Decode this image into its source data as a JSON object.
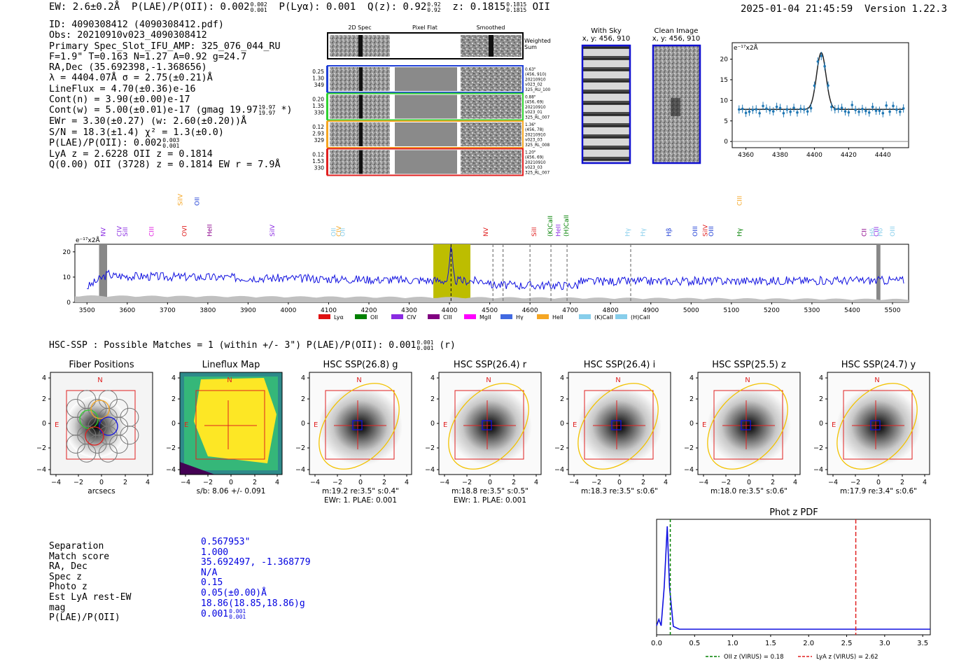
{
  "header": {
    "ew": "EW: 2.6±0.2Å",
    "plae_label": "P(LAE)/P(OII): 0.002",
    "plae_hi": "0.002",
    "plae_lo": "0.001",
    "plya": "P(Lyα): 0.001",
    "q_label": "Q(z): 0.92",
    "q_hi": "0.92",
    "q_lo": "0.92",
    "z_label": "z: 0.1815",
    "z_hi": "0.1815",
    "z_lo": "0.1815",
    "z_line": "OII",
    "timestamp": "2025-01-04 21:45:59",
    "version": "Version 1.22.3"
  },
  "info": {
    "id": "ID: 4090308412 (4090308412.pdf)",
    "obs": "Obs: 20210910v023_4090308412",
    "primary": "Primary Spec_Slot_IFU_AMP: 325_076_044_RU",
    "fiber": "F=1.9\"  T=0.163  N=1.27  A=0.92  g=24.7",
    "radec": "RA,Dec (35.692398,-1.368656)",
    "lambda": "λ = 4404.07Å  σ = 2.75(±0.21)Å",
    "lineflux": "LineFlux = 4.70(±0.36)e-16",
    "contn": "Cont(n) = 3.90(±0.00)e-17",
    "contw": "Cont(w) = 5.00(±0.01)e-17 (gmag 19.97",
    "contw_hi": "19.97",
    "contw_lo": "19.97",
    "contw_end": "*)",
    "ewr": "EWr = 3.30(±0.27) (w: 2.60(±0.20))Å",
    "sn": "S/N = 18.3(±1.4)  χ² = 1.3(±0.0)",
    "plae": "P(LAE)/P(OII): 0.002",
    "plae_hi": "0.003",
    "plae_lo": "0.001",
    "lya": "LyA z = 2.6228  OII z = 0.1814",
    "q": "Q(0.00) OII (3728) z = 0.1814  EW r = 7.9Å"
  },
  "cutouts": {
    "col_titles": [
      "2D Spec",
      "Pixel Flat",
      "Smoothed"
    ],
    "weighted_sum": [
      "Weighted",
      "Sum"
    ],
    "rows": [
      {
        "left": [
          "0.25",
          "1.30",
          "349"
        ],
        "right": [
          "0.63\"",
          "(456, 910)",
          "20210910",
          "v023_02",
          "325_RU_100"
        ],
        "color": "#1f3fd6"
      },
      {
        "left": [
          "0.20",
          "1.35",
          "330"
        ],
        "right": [
          "0.88\"",
          "(456, 69)",
          "20210910",
          "v023_01",
          "325_RL_007"
        ],
        "color": "#2fd12f"
      },
      {
        "left": [
          "0.12",
          "2.93",
          "329"
        ],
        "right": [
          "1.36\"",
          "(456, 78)",
          "20210910",
          "v023_03",
          "325_RL_008"
        ],
        "color": "#f5a623"
      },
      {
        "left": [
          "0.12",
          "1.53",
          "330"
        ],
        "right": [
          "1.20\"",
          "(456, 69)",
          "20210910",
          "v023_03",
          "325_RL_007"
        ],
        "color": "#e02020"
      }
    ]
  },
  "with_sky": {
    "title": "With Sky",
    "coords": "x, y: 456, 910"
  },
  "clean_image": {
    "title": "Clean Image",
    "coords": "x, y: 456, 910"
  },
  "zoom_chart": {
    "ylabel": "e⁻¹⁷x2Å",
    "yticks": [
      "0",
      "5",
      "10",
      "15",
      "20"
    ],
    "xticks": [
      "4360",
      "4380",
      "4400",
      "4420",
      "4440"
    ]
  },
  "full_spectrum": {
    "ylabel": "e⁻¹⁷x2Å",
    "yticks": [
      "0",
      "10",
      "20"
    ],
    "xticks": [
      "3500",
      "3600",
      "3700",
      "3800",
      "3900",
      "4000",
      "4100",
      "4200",
      "4300",
      "4400",
      "4500",
      "4600",
      "4700",
      "4800",
      "4900",
      "5000",
      "5100",
      "5200",
      "5300",
      "5400",
      "5500"
    ],
    "lines": [
      {
        "label": "NV",
        "color": "#8a2be2"
      },
      {
        "label": "CIV",
        "color": "#8a2be2"
      },
      {
        "label": "SiII",
        "color": "#8a2be2"
      },
      {
        "label": "CIII",
        "color": "#e020e0"
      },
      {
        "label": "SiIV",
        "color": "#f5a623"
      },
      {
        "label": "OVI",
        "color": "#e02020"
      },
      {
        "label": "OII",
        "color": "#1f3fd6"
      },
      {
        "label": "HeII",
        "color": "#8b008b"
      },
      {
        "label": "SiIV",
        "color": "#8a2be2"
      },
      {
        "label": "OII",
        "color": "#87ceeb"
      },
      {
        "label": "CIV",
        "color": "#f5a623"
      },
      {
        "label": "OII",
        "color": "#87ceeb"
      },
      {
        "label": "NV",
        "color": "#e02020"
      },
      {
        "label": "SiII",
        "color": "#e02020"
      },
      {
        "label": "(K)CaII",
        "color": "#008000"
      },
      {
        "label": "HeII",
        "color": "#8a2be2"
      },
      {
        "label": "(H)CaII",
        "color": "#008000"
      },
      {
        "label": "Hγ",
        "color": "#87ceeb"
      },
      {
        "label": "Hγ",
        "color": "#87ceeb"
      },
      {
        "label": "Hβ",
        "color": "#1f3fd6"
      },
      {
        "label": "OIII",
        "color": "#1f3fd6"
      },
      {
        "label": "SiIV",
        "color": "#e02020"
      },
      {
        "label": "OIII",
        "color": "#1f3fd6"
      },
      {
        "label": "CIII",
        "color": "#f5a623"
      },
      {
        "label": "Hγ",
        "color": "#008000"
      },
      {
        "label": "CII",
        "color": "#8b008b"
      },
      {
        "label": "Hδ",
        "color": "#87ceeb"
      },
      {
        "label": "CIII",
        "color": "#8a2be2"
      },
      {
        "label": "Hδ",
        "color": "#87ceeb"
      },
      {
        "label": "OIII",
        "color": "#87ceeb"
      }
    ],
    "legend": [
      {
        "label": "Lyα",
        "color": "#e01010"
      },
      {
        "label": "OII",
        "color": "#008000"
      },
      {
        "label": "CIV",
        "color": "#8a2be2"
      },
      {
        "label": "CIII",
        "color": "#800080"
      },
      {
        "label": "MgII",
        "color": "#ff00ff"
      },
      {
        "label": "Hγ",
        "color": "#4169e1"
      },
      {
        "label": "HeII",
        "color": "#f5a623"
      },
      {
        "label": "(K)CaII",
        "color": "#87ceeb"
      },
      {
        "label": "(H)CaII",
        "color": "#87ceeb"
      }
    ]
  },
  "hsc": {
    "summary": "HSC-SSP : Possible Matches = 1 (within +/- 3\")  P(LAE)/P(OII): 0.001",
    "summary_hi": "0.001",
    "summary_lo": "0.001",
    "summary_end": "(r)",
    "panels": [
      {
        "title": "Fiber Positions",
        "caption1": "arcsecs",
        "caption2": ""
      },
      {
        "title": "Lineflux Map",
        "caption1": "s/b: 8.06 +/- 0.091",
        "caption2": ""
      },
      {
        "title": "HSC SSP(26.8) g",
        "caption1": "m:19.2  re:3.5\"  s:0.4\"",
        "caption2": "EWr: 1. PLAE: 0.001"
      },
      {
        "title": "HSC SSP(26.4) r",
        "caption1": "m:18.8  re:3.5\"  s:0.5\"",
        "caption2": "EWr: 1. PLAE: 0.001"
      },
      {
        "title": "HSC SSP(26.4) i",
        "caption1": "m:18.3  re:3.5\"  s:0.6\"",
        "caption2": ""
      },
      {
        "title": "HSC SSP(25.5) z",
        "caption1": "m:18.0  re:3.5\"  s:0.6\"",
        "caption2": ""
      },
      {
        "title": "HSC SSP(24.7) y",
        "caption1": "m:17.9  re:3.4\"  s:0.6\"",
        "caption2": ""
      }
    ],
    "yticks": [
      "4",
      "2",
      "0",
      "−2",
      "−4"
    ],
    "xticks": [
      "−4",
      "−2",
      "0",
      "2",
      "4"
    ],
    "compass_n": "N",
    "compass_e": "E"
  },
  "match_table": {
    "labels": [
      "Separation",
      "Match score",
      "RA, Dec",
      "Spec z",
      "Photo z",
      "Est LyA rest-EW",
      "mag",
      "P(LAE)/P(OII)"
    ],
    "values": [
      "0.567953\"",
      "1.000",
      "35.692497, -1.368779",
      "N/A",
      "0.15",
      "0.05(±0.00)Å",
      "18.86(18.85,18.86)g",
      "0.001"
    ],
    "plae_hi": "0.001",
    "plae_lo": "0.001"
  },
  "photz": {
    "title": "Phot z PDF",
    "xticks": [
      "0.0",
      "0.5",
      "1.0",
      "1.5",
      "2.0",
      "2.5",
      "3.0",
      "3.5"
    ],
    "oii_z": 0.18,
    "lya_z": 2.62,
    "legend_oii": "OII z (VIRUS) = 0.18",
    "legend_lya": "LyA z (VIRUS) = 2.62"
  }
}
